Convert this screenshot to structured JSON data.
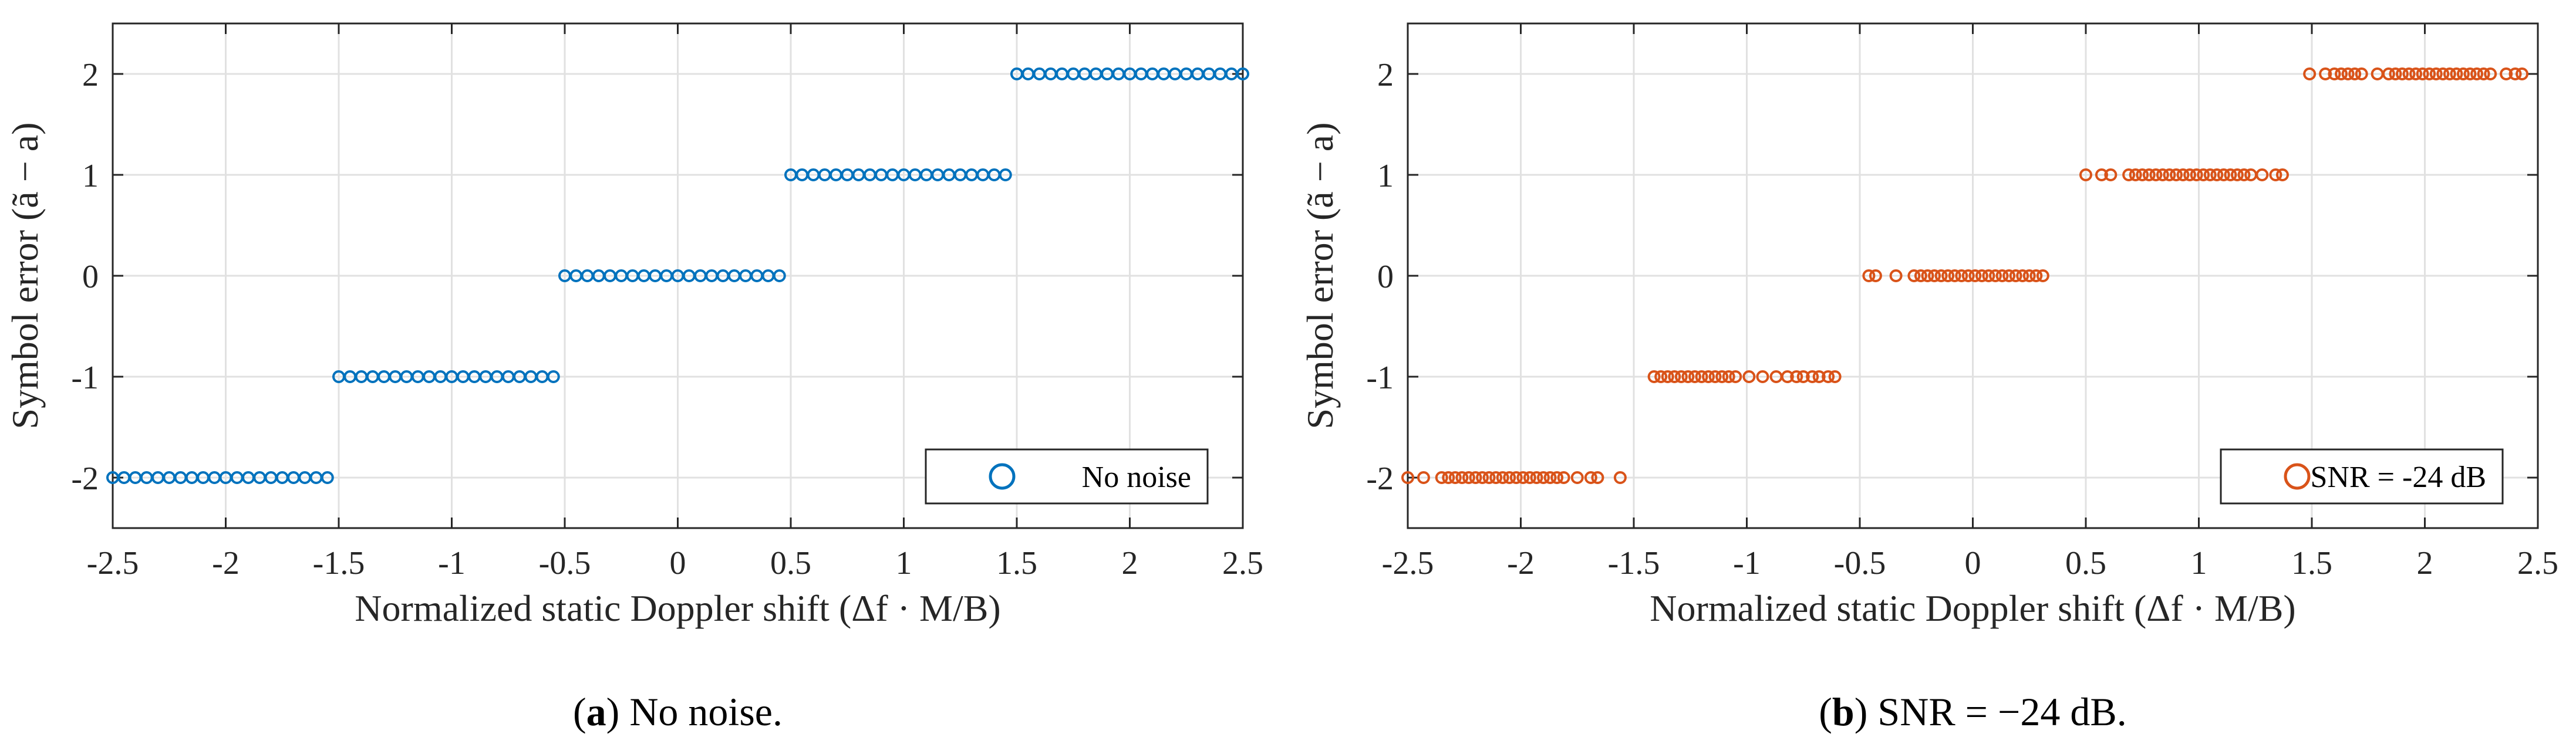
{
  "chart_data": [
    {
      "type": "scatter",
      "panel_label": "a",
      "caption": "No noise.",
      "xlabel": "Normalized static Doppler shift (Δf · M/B)",
      "ylabel": "Symbol error (ã − a)",
      "xlim": [
        -2.5,
        2.5
      ],
      "ylim": [
        -2.5,
        2.5
      ],
      "xticks": [
        "-2.5",
        "-2",
        "-1.5",
        "-1",
        "-0.5",
        "0",
        "0.5",
        "1",
        "1.5",
        "2",
        "2.5"
      ],
      "yticks": [
        "-2",
        "-1",
        "0",
        "1",
        "2"
      ],
      "grid": true,
      "legend": {
        "label": "No noise",
        "position": "lower-right"
      },
      "color": "#0072BD",
      "series": [
        {
          "name": "No noise",
          "values_x_step": 0.05,
          "x": [],
          "y": []
        }
      ],
      "steps": [
        {
          "y": -2,
          "x_from": -2.5,
          "x_to": -1.5,
          "step": 0.05
        },
        {
          "y": -1,
          "x_from": -1.5,
          "x_to": -0.5,
          "step": 0.05
        },
        {
          "y": 0,
          "x_from": -0.5,
          "x_to": 0.5,
          "step": 0.05
        },
        {
          "y": 1,
          "x_from": 0.5,
          "x_to": 1.5,
          "step": 0.05
        },
        {
          "y": 2,
          "x_from": 1.5,
          "x_to": 2.5,
          "step": 0.05
        }
      ]
    },
    {
      "type": "scatter",
      "panel_label": "b",
      "caption": "SNR = −24 dB.",
      "xlabel": "Normalized static Doppler shift (Δf · M/B)",
      "ylabel": "Symbol error (ã − a)",
      "xlim": [
        -2.5,
        2.5
      ],
      "ylim": [
        -2.5,
        2.5
      ],
      "xticks": [
        "-2.5",
        "-2",
        "-1.5",
        "-1",
        "-0.5",
        "0",
        "0.5",
        "1",
        "1.5",
        "2",
        "2.5"
      ],
      "yticks": [
        "-2",
        "-1",
        "0",
        "1",
        "2"
      ],
      "grid": true,
      "legend": {
        "label": "SNR = -24 dB",
        "position": "lower-right"
      },
      "color": "#D95319",
      "points": [
        [
          -2.5,
          -2
        ],
        [
          -2.43,
          -2
        ],
        [
          -2.35,
          -2
        ],
        [
          -2.32,
          -2
        ],
        [
          -2.29,
          -2
        ],
        [
          -2.26,
          -2
        ],
        [
          -2.23,
          -2
        ],
        [
          -2.2,
          -2
        ],
        [
          -2.17,
          -2
        ],
        [
          -2.14,
          -2
        ],
        [
          -2.11,
          -2
        ],
        [
          -2.08,
          -2
        ],
        [
          -2.05,
          -2
        ],
        [
          -2.02,
          -2
        ],
        [
          -1.99,
          -2
        ],
        [
          -1.96,
          -2
        ],
        [
          -1.93,
          -2
        ],
        [
          -1.9,
          -2
        ],
        [
          -1.87,
          -2
        ],
        [
          -1.84,
          -2
        ],
        [
          -1.81,
          -2
        ],
        [
          -1.75,
          -2
        ],
        [
          -1.69,
          -2
        ],
        [
          -1.66,
          -2
        ],
        [
          -1.56,
          -2
        ],
        [
          -1.41,
          -1
        ],
        [
          -1.38,
          -1
        ],
        [
          -1.35,
          -1
        ],
        [
          -1.32,
          -1
        ],
        [
          -1.29,
          -1
        ],
        [
          -1.26,
          -1
        ],
        [
          -1.23,
          -1
        ],
        [
          -1.2,
          -1
        ],
        [
          -1.17,
          -1
        ],
        [
          -1.14,
          -1
        ],
        [
          -1.11,
          -1
        ],
        [
          -1.08,
          -1
        ],
        [
          -1.05,
          -1
        ],
        [
          -0.99,
          -1
        ],
        [
          -0.93,
          -1
        ],
        [
          -0.87,
          -1
        ],
        [
          -0.82,
          -1
        ],
        [
          -0.78,
          -1
        ],
        [
          -0.75,
          -1
        ],
        [
          -0.71,
          -1
        ],
        [
          -0.68,
          -1
        ],
        [
          -0.64,
          -1
        ],
        [
          -0.61,
          -1
        ],
        [
          -0.46,
          0
        ],
        [
          -0.43,
          0
        ],
        [
          -0.34,
          0
        ],
        [
          -0.26,
          0
        ],
        [
          -0.23,
          0
        ],
        [
          -0.2,
          0
        ],
        [
          -0.17,
          0
        ],
        [
          -0.14,
          0
        ],
        [
          -0.11,
          0
        ],
        [
          -0.08,
          0
        ],
        [
          -0.05,
          0
        ],
        [
          -0.02,
          0
        ],
        [
          0.01,
          0
        ],
        [
          0.04,
          0
        ],
        [
          0.07,
          0
        ],
        [
          0.1,
          0
        ],
        [
          0.13,
          0
        ],
        [
          0.16,
          0
        ],
        [
          0.19,
          0
        ],
        [
          0.22,
          0
        ],
        [
          0.25,
          0
        ],
        [
          0.28,
          0
        ],
        [
          0.31,
          0
        ],
        [
          0.5,
          1
        ],
        [
          0.57,
          1
        ],
        [
          0.61,
          1
        ],
        [
          0.69,
          1
        ],
        [
          0.72,
          1
        ],
        [
          0.75,
          1
        ],
        [
          0.78,
          1
        ],
        [
          0.81,
          1
        ],
        [
          0.84,
          1
        ],
        [
          0.87,
          1
        ],
        [
          0.9,
          1
        ],
        [
          0.93,
          1
        ],
        [
          0.96,
          1
        ],
        [
          0.99,
          1
        ],
        [
          1.02,
          1
        ],
        [
          1.05,
          1
        ],
        [
          1.08,
          1
        ],
        [
          1.11,
          1
        ],
        [
          1.14,
          1
        ],
        [
          1.17,
          1
        ],
        [
          1.2,
          1
        ],
        [
          1.23,
          1
        ],
        [
          1.28,
          1
        ],
        [
          1.34,
          1
        ],
        [
          1.37,
          1
        ],
        [
          1.49,
          2
        ],
        [
          1.56,
          2
        ],
        [
          1.6,
          2
        ],
        [
          1.63,
          2
        ],
        [
          1.66,
          2
        ],
        [
          1.69,
          2
        ],
        [
          1.72,
          2
        ],
        [
          1.79,
          2
        ],
        [
          1.84,
          2
        ],
        [
          1.87,
          2
        ],
        [
          1.9,
          2
        ],
        [
          1.93,
          2
        ],
        [
          1.96,
          2
        ],
        [
          1.99,
          2
        ],
        [
          2.02,
          2
        ],
        [
          2.05,
          2
        ],
        [
          2.08,
          2
        ],
        [
          2.11,
          2
        ],
        [
          2.14,
          2
        ],
        [
          2.17,
          2
        ],
        [
          2.2,
          2
        ],
        [
          2.23,
          2
        ],
        [
          2.26,
          2
        ],
        [
          2.29,
          2
        ],
        [
          2.36,
          2
        ],
        [
          2.4,
          2
        ],
        [
          2.43,
          2
        ]
      ]
    }
  ]
}
